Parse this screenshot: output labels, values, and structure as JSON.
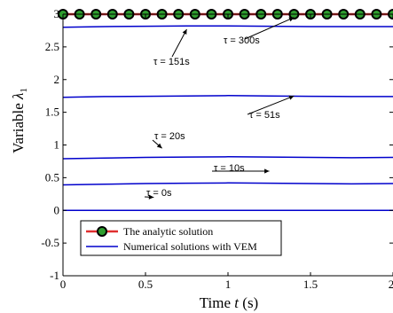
{
  "chart_data": {
    "type": "line",
    "xlabel_prefix": "Time ",
    "xlabel_var": "t",
    "xlabel_unit": " (s)",
    "ylabel_prefix": "Variable ",
    "ylabel_var": "λ",
    "ylabel_sub": "1",
    "xlim": [
      0,
      2
    ],
    "ylim": [
      -1,
      3
    ],
    "xticks": [
      0,
      0.5,
      1,
      1.5,
      2
    ],
    "xtick_labels": [
      "0",
      "0.5",
      "1",
      "1.5",
      "2"
    ],
    "yticks": [
      -1,
      -0.5,
      0,
      0.5,
      1,
      1.5,
      2,
      2.5,
      3
    ],
    "ytick_labels": [
      "-1",
      "-0.5",
      "0",
      "0.5",
      "1",
      "1.5",
      "2",
      "2.5",
      "3"
    ],
    "grid": false,
    "legend_position": "bottom-left",
    "series": [
      {
        "name": "The analytic solution",
        "color": "#e03030",
        "marker_fill": "#2e9e2e",
        "marker_edge": "#000000",
        "x": [
          0,
          0.1,
          0.2,
          0.3,
          0.4,
          0.5,
          0.6,
          0.7,
          0.8,
          0.9,
          1.0,
          1.1,
          1.2,
          1.3,
          1.4,
          1.5,
          1.6,
          1.7,
          1.8,
          1.9,
          2.0
        ],
        "y": [
          3,
          3,
          3,
          3,
          3,
          3,
          3,
          3,
          3,
          3,
          3,
          3,
          3,
          3,
          3,
          3,
          3,
          3,
          3,
          3,
          3
        ]
      },
      {
        "name": "Numerical solutions with VEM",
        "color": "#0000cc",
        "curves": [
          {
            "label": "τ = 0s",
            "x": [
              0,
              2
            ],
            "y": [
              0,
              0
            ]
          },
          {
            "label": "τ = 10s",
            "x": [
              0,
              0.25,
              0.5,
              0.75,
              1.0,
              1.25,
              1.5,
              1.75,
              2.0
            ],
            "y": [
              0.39,
              0.4,
              0.41,
              0.415,
              0.42,
              0.415,
              0.41,
              0.405,
              0.41
            ]
          },
          {
            "label": "τ = 20s",
            "x": [
              0,
              0.25,
              0.5,
              0.75,
              1.0,
              1.25,
              1.5,
              1.75,
              2.0
            ],
            "y": [
              0.79,
              0.8,
              0.81,
              0.815,
              0.82,
              0.815,
              0.81,
              0.805,
              0.81
            ]
          },
          {
            "label": "τ = 51s",
            "x": [
              0,
              0.25,
              0.5,
              0.75,
              1.0,
              1.25,
              1.5,
              1.75,
              2.0
            ],
            "y": [
              1.73,
              1.74,
              1.745,
              1.75,
              1.755,
              1.75,
              1.745,
              1.74,
              1.74
            ]
          },
          {
            "label": "τ = 151s",
            "x": [
              0,
              0.25,
              0.5,
              0.75,
              1.0,
              1.25,
              1.5,
              1.75,
              2.0
            ],
            "y": [
              2.8,
              2.81,
              2.815,
              2.82,
              2.82,
              2.815,
              2.81,
              2.81,
              2.81
            ]
          },
          {
            "label": "τ = 300s",
            "x": [
              0,
              2
            ],
            "y": [
              2.995,
              2.995
            ]
          }
        ]
      }
    ],
    "annotations": [
      {
        "text": "τ = 0s",
        "arrow_to": [
          0.55,
          0.2
        ]
      },
      {
        "text": "τ = 10s",
        "arrow_to": [
          1.25,
          0.6
        ]
      },
      {
        "text": "τ = 20s",
        "arrow_to": [
          0.6,
          0.95
        ]
      },
      {
        "text": "τ = 51s",
        "arrow_to": [
          1.4,
          1.75
        ]
      },
      {
        "text": "τ = 151s",
        "arrow_to": [
          0.75,
          2.77
        ]
      },
      {
        "text": "τ = 300s",
        "arrow_to": [
          1.4,
          2.95
        ]
      }
    ]
  }
}
